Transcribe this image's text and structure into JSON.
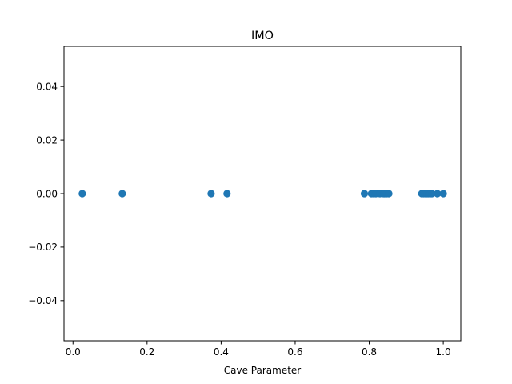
{
  "chart_data": {
    "type": "scatter",
    "title": "IMO",
    "xlabel": "Cave Parameter",
    "ylabel": "",
    "xlim": [
      -0.0243,
      1.0473
    ],
    "ylim": [
      -0.055,
      0.055
    ],
    "xticks": [
      0.0,
      0.2,
      0.4,
      0.6,
      0.8,
      1.0
    ],
    "xtick_labels": [
      "0.0",
      "0.2",
      "0.4",
      "0.6",
      "0.8",
      "1.0"
    ],
    "yticks": [
      -0.04,
      -0.02,
      0.0,
      0.02,
      0.04
    ],
    "ytick_labels": [
      "−0.04",
      "−0.02",
      "0.00",
      "0.02",
      "0.04"
    ],
    "grid": false,
    "series": [
      {
        "color": "#1f77b4",
        "points": [
          {
            "x": 0.025,
            "y": 0
          },
          {
            "x": 0.133,
            "y": 0
          },
          {
            "x": 0.373,
            "y": 0
          },
          {
            "x": 0.416,
            "y": 0
          },
          {
            "x": 0.787,
            "y": 0
          },
          {
            "x": 0.806,
            "y": 0
          },
          {
            "x": 0.812,
            "y": 0
          },
          {
            "x": 0.818,
            "y": 0
          },
          {
            "x": 0.829,
            "y": 0
          },
          {
            "x": 0.839,
            "y": 0
          },
          {
            "x": 0.842,
            "y": 0
          },
          {
            "x": 0.847,
            "y": 0
          },
          {
            "x": 0.853,
            "y": 0
          },
          {
            "x": 0.942,
            "y": 0
          },
          {
            "x": 0.947,
            "y": 0
          },
          {
            "x": 0.952,
            "y": 0
          },
          {
            "x": 0.956,
            "y": 0
          },
          {
            "x": 0.96,
            "y": 0
          },
          {
            "x": 0.965,
            "y": 0
          },
          {
            "x": 0.969,
            "y": 0
          },
          {
            "x": 0.984,
            "y": 0
          },
          {
            "x": 1.0,
            "y": 0
          }
        ]
      }
    ]
  }
}
